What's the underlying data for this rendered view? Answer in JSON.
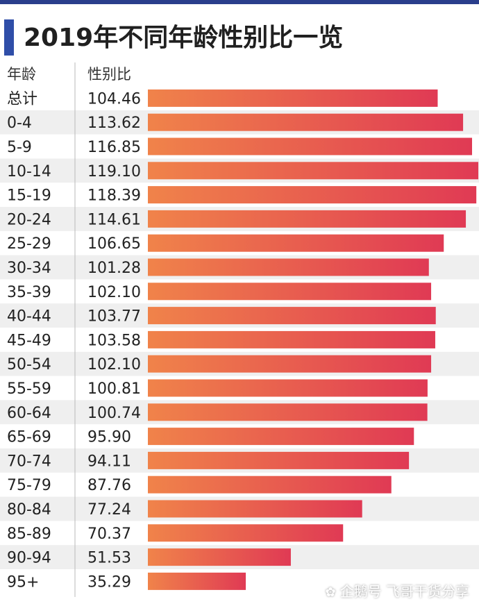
{
  "title": "2019年不同年龄性别比一览",
  "headers": {
    "age": "年龄",
    "ratio": "性别比"
  },
  "colors": {
    "bar_start": "#f0834a",
    "bar_end": "#e03a54",
    "row_stripe": "#efefef",
    "title_accent": "#2f4ea8"
  },
  "watermark": "企鹅号 飞哥干货分享",
  "chart_data": {
    "type": "bar",
    "orientation": "horizontal",
    "categories": [
      "总计",
      "0-4",
      "5-9",
      "10-14",
      "15-19",
      "20-24",
      "25-29",
      "30-34",
      "35-39",
      "40-44",
      "45-49",
      "50-54",
      "55-59",
      "60-64",
      "65-69",
      "70-74",
      "75-79",
      "80-84",
      "85-89",
      "90-94",
      "95+"
    ],
    "values": [
      104.46,
      113.62,
      116.85,
      119.1,
      118.39,
      114.61,
      106.65,
      101.28,
      102.1,
      103.77,
      103.58,
      102.1,
      100.81,
      100.74,
      95.9,
      94.11,
      87.76,
      77.24,
      70.37,
      51.53,
      35.29
    ],
    "value_labels": [
      "104.46",
      "113.62",
      "116.85",
      "119.10",
      "118.39",
      "114.61",
      "106.65",
      "101.28",
      "102.10",
      "103.77",
      "103.58",
      "102.10",
      "100.81",
      "100.74",
      "95.90",
      "94.11",
      "87.76",
      "77.24",
      "70.37",
      "51.53",
      "35.29"
    ],
    "title": "2019年不同年龄性别比一览",
    "xlabel": "",
    "ylabel": "",
    "grid": false
  }
}
